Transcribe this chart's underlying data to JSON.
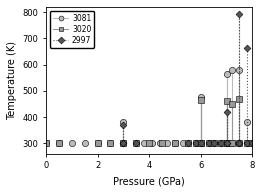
{
  "series": {
    "3081": {
      "segments": [
        [
          [
            0.0,
            300
          ]
        ],
        [
          [
            0.5,
            300
          ]
        ],
        [
          [
            1.0,
            300
          ]
        ],
        [
          [
            1.5,
            300
          ]
        ],
        [
          [
            2.0,
            300
          ]
        ],
        [
          [
            2.5,
            300
          ]
        ],
        [
          [
            3.0,
            300
          ],
          [
            3.0,
            380
          ],
          [
            3.0,
            300
          ]
        ],
        [
          [
            3.5,
            300
          ]
        ],
        [
          [
            3.8,
            300
          ]
        ],
        [
          [
            4.1,
            300
          ]
        ],
        [
          [
            4.4,
            300
          ]
        ],
        [
          [
            4.7,
            300
          ]
        ],
        [
          [
            5.0,
            300
          ]
        ],
        [
          [
            5.3,
            300
          ]
        ],
        [
          [
            5.5,
            300
          ]
        ],
        [
          [
            5.8,
            300
          ]
        ],
        [
          [
            6.0,
            300
          ],
          [
            6.0,
            475
          ],
          [
            6.0,
            300
          ]
        ],
        [
          [
            6.3,
            300
          ]
        ],
        [
          [
            6.5,
            300
          ]
        ],
        [
          [
            6.8,
            300
          ]
        ],
        [
          [
            7.0,
            300
          ],
          [
            7.0,
            565
          ],
          [
            7.0,
            300
          ]
        ],
        [
          [
            7.2,
            580
          ],
          [
            7.2,
            300
          ]
        ],
        [
          [
            7.5,
            580
          ],
          [
            7.5,
            300
          ]
        ],
        [
          [
            7.8,
            380
          ],
          [
            7.8,
            300
          ]
        ],
        [
          [
            8.0,
            300
          ]
        ]
      ],
      "color": "#bbbbbb",
      "marker": "o",
      "linestyle": "-",
      "markersize": 4.5
    },
    "3020": {
      "segments": [
        [
          [
            0.0,
            300
          ]
        ],
        [
          [
            0.5,
            300
          ]
        ],
        [
          [
            2.0,
            300
          ]
        ],
        [
          [
            2.5,
            300
          ]
        ],
        [
          [
            3.0,
            300
          ]
        ],
        [
          [
            3.5,
            300
          ]
        ],
        [
          [
            4.0,
            300
          ]
        ],
        [
          [
            4.5,
            300
          ]
        ],
        [
          [
            5.0,
            300
          ]
        ],
        [
          [
            5.5,
            300
          ]
        ],
        [
          [
            5.8,
            300
          ]
        ],
        [
          [
            6.0,
            300
          ],
          [
            6.0,
            465
          ],
          [
            6.0,
            300
          ]
        ],
        [
          [
            6.3,
            300
          ]
        ],
        [
          [
            6.5,
            300
          ]
        ],
        [
          [
            6.8,
            300
          ]
        ],
        [
          [
            7.0,
            300
          ],
          [
            7.0,
            460
          ],
          [
            7.0,
            300
          ]
        ],
        [
          [
            7.2,
            450
          ],
          [
            7.2,
            300
          ]
        ],
        [
          [
            7.5,
            470
          ],
          [
            7.5,
            300
          ]
        ],
        [
          [
            7.8,
            300
          ]
        ],
        [
          [
            8.0,
            300
          ]
        ]
      ],
      "color": "#999999",
      "marker": "s",
      "linestyle": "-",
      "markersize": 4.0
    },
    "2997": {
      "segments": [
        [
          [
            3.0,
            300
          ],
          [
            3.0,
            370
          ],
          [
            3.0,
            300
          ]
        ],
        [
          [
            3.5,
            300
          ]
        ],
        [
          [
            5.5,
            300
          ]
        ],
        [
          [
            5.8,
            300
          ]
        ],
        [
          [
            6.0,
            300
          ]
        ],
        [
          [
            6.3,
            300
          ]
        ],
        [
          [
            6.5,
            300
          ]
        ],
        [
          [
            6.8,
            300
          ]
        ],
        [
          [
            7.0,
            300
          ],
          [
            7.0,
            420
          ],
          [
            7.0,
            300
          ]
        ],
        [
          [
            7.5,
            300
          ],
          [
            7.5,
            795
          ],
          [
            7.5,
            300
          ]
        ],
        [
          [
            7.8,
            665
          ],
          [
            7.8,
            300
          ]
        ],
        [
          [
            8.0,
            300
          ]
        ]
      ],
      "color": "#555555",
      "marker": "D",
      "linestyle": ":",
      "markersize": 3.5
    }
  },
  "xlabel": "Pressure (GPa)",
  "ylabel": "Temperature (K)",
  "xlim": [
    0,
    8
  ],
  "ylim": [
    260,
    820
  ],
  "yticks": [
    300,
    400,
    500,
    600,
    700,
    800
  ],
  "xticks": [
    0,
    2,
    4,
    6,
    8
  ],
  "legend_labels": [
    "3081",
    "3020",
    "2997"
  ],
  "legend_markers": [
    "o",
    "s",
    "D"
  ],
  "legend_colors": [
    "#bbbbbb",
    "#999999",
    "#555555"
  ],
  "legend_linestyles": [
    "-",
    "-",
    ":"
  ]
}
